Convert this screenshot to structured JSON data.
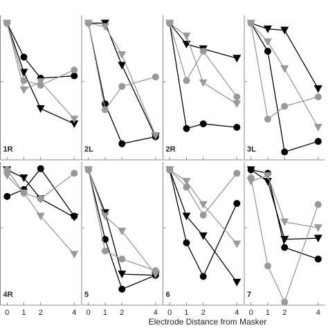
{
  "xlabel": "Electrode Distance from Masker",
  "chart_data": [
    {
      "type": "line",
      "title": "1R",
      "x": [
        0,
        1,
        2,
        4
      ],
      "xlim": [
        -0.4,
        4.4
      ],
      "xticks": [
        0,
        1,
        2,
        4
      ],
      "ylim": [
        -0.15,
        1.05
      ],
      "yticks": [
        0.5
      ],
      "series": [
        {
          "color": "#000000",
          "marker": "circle",
          "values": [
            1,
            0.71,
            0.53,
            0.55
          ]
        },
        {
          "color": "#000000",
          "marker": "triangle",
          "values": [
            1,
            0.58,
            0.27,
            0.14
          ]
        },
        {
          "color": "#999999",
          "marker": "circle",
          "values": [
            1,
            0.51,
            0.47,
            0.6
          ]
        },
        {
          "color": "#999999",
          "marker": "triangle",
          "values": [
            1,
            0.43,
            0.5,
            0.18
          ]
        }
      ]
    },
    {
      "type": "line",
      "title": "2L",
      "x": [
        0,
        1,
        2,
        4
      ],
      "xlim": [
        -0.4,
        4.4
      ],
      "xticks": [
        0,
        1,
        2,
        4
      ],
      "ylim": [
        -0.15,
        1.05
      ],
      "yticks": [
        0.5
      ],
      "series": [
        {
          "color": "#000000",
          "marker": "circle",
          "values": [
            1,
            0.31,
            -0.03,
            0.03
          ]
        },
        {
          "color": "#000000",
          "marker": "triangle",
          "values": [
            1,
            1,
            0.64,
            0.03
          ]
        },
        {
          "color": "#999999",
          "marker": "circle",
          "values": [
            1,
            0.26,
            0.46,
            0.54
          ]
        },
        {
          "color": "#999999",
          "marker": "triangle",
          "values": [
            1,
            0.97,
            0.73,
            0.04
          ]
        }
      ]
    },
    {
      "type": "line",
      "title": "2R",
      "x": [
        0,
        1,
        2,
        4
      ],
      "xlim": [
        -0.4,
        4.4
      ],
      "xticks": [
        0,
        1,
        2,
        4
      ],
      "ylim": [
        -0.15,
        1.05
      ],
      "yticks": [
        0.5
      ],
      "series": [
        {
          "color": "#000000",
          "marker": "circle",
          "values": [
            1,
            0.1,
            0.14,
            0.11
          ]
        },
        {
          "color": "#000000",
          "marker": "triangle",
          "values": [
            1,
            0.82,
            0.78,
            0.7
          ]
        },
        {
          "color": "#999999",
          "marker": "circle",
          "values": [
            1,
            0.51,
            0.76,
            0.37
          ]
        },
        {
          "color": "#999999",
          "marker": "triangle",
          "values": [
            1,
            0.89,
            0.49,
            0.31
          ]
        }
      ]
    },
    {
      "type": "line",
      "title": "3L",
      "x": [
        0,
        1,
        2,
        4
      ],
      "xlim": [
        -0.4,
        4.4
      ],
      "xticks": [
        0,
        1,
        2,
        4
      ],
      "ylim": [
        -0.15,
        1.05
      ],
      "yticks": [
        0.5
      ],
      "series": [
        {
          "color": "#000000",
          "marker": "circle",
          "values": [
            1,
            0.76,
            -0.1,
            -0.01
          ]
        },
        {
          "color": "#000000",
          "marker": "triangle",
          "values": [
            1,
            0.95,
            0.94,
            0.44
          ]
        },
        {
          "color": "#999999",
          "marker": "circle",
          "values": [
            1,
            0.18,
            0.29,
            0.37
          ]
        },
        {
          "color": "#999999",
          "marker": "triangle",
          "values": [
            1,
            0.84,
            0.61,
            0.11
          ]
        }
      ]
    },
    {
      "type": "line",
      "title": "4R",
      "x": [
        0,
        1,
        2,
        4
      ],
      "xlim": [
        -0.4,
        4.4
      ],
      "xticks": [
        0,
        1,
        2,
        4
      ],
      "ylim": [
        -0.15,
        1.05
      ],
      "yticks": [
        0.5
      ],
      "series": [
        {
          "color": "#000000",
          "marker": "circle",
          "values": [
            0.77,
            0.83,
            1.01,
            0.6
          ]
        },
        {
          "color": "#000000",
          "marker": "triangle",
          "values": [
            1,
            0.93,
            0.75,
            0.59
          ]
        },
        {
          "color": "#999999",
          "marker": "circle",
          "values": [
            1,
            0.8,
            0.75,
            0.97
          ]
        },
        {
          "color": "#999999",
          "marker": "triangle",
          "values": [
            0.95,
            0.8,
            0.6,
            0.27
          ]
        }
      ]
    },
    {
      "type": "line",
      "title": "5",
      "x": [
        0,
        1,
        2,
        4
      ],
      "xlim": [
        -0.4,
        4.4
      ],
      "xticks": [
        0,
        1,
        2,
        4
      ],
      "ylim": [
        -0.15,
        1.05
      ],
      "yticks": [
        0.5
      ],
      "series": [
        {
          "color": "#000000",
          "marker": "circle",
          "values": [
            1,
            0.4,
            -0.03,
            0.09
          ]
        },
        {
          "color": "#000000",
          "marker": "triangle",
          "values": [
            1,
            0.63,
            0.1,
            0.09
          ]
        },
        {
          "color": "#999999",
          "marker": "circle",
          "values": [
            1,
            0.3,
            0.23,
            0.13
          ]
        },
        {
          "color": "#999999",
          "marker": "triangle",
          "values": [
            1,
            0.6,
            0.47,
            0.1
          ]
        }
      ]
    },
    {
      "type": "line",
      "title": "6",
      "x": [
        0,
        1,
        2,
        4
      ],
      "xlim": [
        -0.4,
        4.4
      ],
      "xticks": [
        0,
        1,
        2,
        4
      ],
      "ylim": [
        -0.15,
        1.05
      ],
      "yticks": [
        0.5
      ],
      "series": [
        {
          "color": "#000000",
          "marker": "circle",
          "values": [
            1,
            0.37,
            0.08,
            0.71
          ]
        },
        {
          "color": "#000000",
          "marker": "triangle",
          "values": [
            1,
            0.6,
            0.43,
            0.03
          ]
        },
        {
          "color": "#999999",
          "marker": "circle",
          "values": [
            1,
            0.85,
            0.61,
            0.97
          ]
        },
        {
          "color": "#999999",
          "marker": "triangle",
          "values": [
            1,
            0.9,
            0.7,
            0.36
          ]
        }
      ]
    },
    {
      "type": "line",
      "title": "7",
      "x": [
        0,
        1,
        2,
        4
      ],
      "xlim": [
        -0.4,
        4.4
      ],
      "xticks": [
        0,
        1,
        2,
        4
      ],
      "ylim": [
        -0.15,
        1.05
      ],
      "yticks": [
        0.5
      ],
      "series": [
        {
          "color": "#000000",
          "marker": "circle",
          "values": [
            1,
            0.97,
            0.33,
            0.23
          ]
        },
        {
          "color": "#000000",
          "marker": "triangle",
          "values": [
            1,
            0.9,
            0.4,
            0.41
          ]
        },
        {
          "color": "#999999",
          "marker": "circle",
          "values": [
            0.93,
            0.17,
            -0.14,
            0.7
          ]
        },
        {
          "color": "#999999",
          "marker": "triangle",
          "values": [
            0.9,
            0.95,
            0.55,
            0.5
          ]
        }
      ]
    }
  ]
}
